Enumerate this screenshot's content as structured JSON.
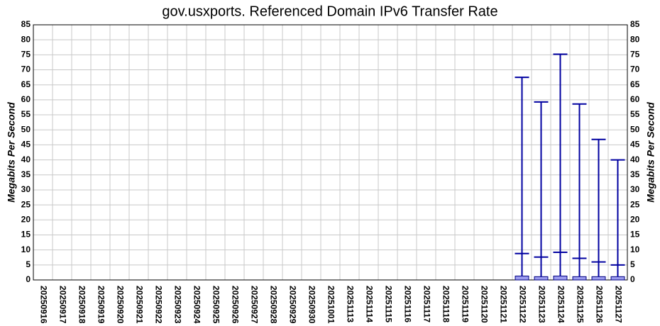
{
  "chart_data": {
    "type": "bar",
    "title": "gov.usxports. Referenced Domain IPv6 Transfer Rate",
    "ylabel": "Megabits Per Second",
    "y2label": "Megabits Per Second",
    "categories": [
      "20250916",
      "20250917",
      "20250918",
      "20250919",
      "20250920",
      "20250921",
      "20250922",
      "20250923",
      "20250924",
      "20250925",
      "20250926",
      "20250927",
      "20250928",
      "20250929",
      "20250930",
      "20251001",
      "20251113",
      "20251114",
      "20251115",
      "20251116",
      "20251117",
      "20251118",
      "20251119",
      "20251120",
      "20251121",
      "20251122",
      "20251123",
      "20251124",
      "20251125",
      "20251126",
      "20251127"
    ],
    "values": [
      0,
      0,
      0,
      0,
      0,
      0,
      0,
      0,
      0,
      0,
      0,
      0,
      0,
      0,
      0,
      0,
      0,
      0,
      0,
      0,
      0,
      0,
      0,
      0,
      0,
      1.3,
      1.1,
      1.3,
      1.1,
      1.1,
      1.1
    ],
    "avg_values": [
      null,
      null,
      null,
      null,
      null,
      null,
      null,
      null,
      null,
      null,
      null,
      null,
      null,
      null,
      null,
      null,
      null,
      null,
      null,
      null,
      null,
      null,
      null,
      null,
      null,
      8.8,
      7.6,
      9.2,
      7.2,
      6.0,
      5.0
    ],
    "max_values": [
      null,
      null,
      null,
      null,
      null,
      null,
      null,
      null,
      null,
      null,
      null,
      null,
      null,
      null,
      null,
      null,
      null,
      null,
      null,
      null,
      null,
      null,
      null,
      null,
      null,
      67.5,
      59.3,
      75.2,
      58.6,
      46.8,
      40.0
    ],
    "color": "#9a9aee",
    "error_color": "#0000a0",
    "ylim": [
      0,
      85
    ],
    "yticks": [
      0,
      5,
      10,
      15,
      20,
      25,
      30,
      35,
      40,
      45,
      50,
      55,
      60,
      65,
      70,
      75,
      80,
      85
    ],
    "y2lim": [
      0,
      85
    ],
    "y2ticks": [
      0,
      5,
      10,
      15,
      20,
      25,
      30,
      35,
      40,
      45,
      50,
      55,
      60,
      65,
      70,
      75,
      80,
      85
    ],
    "grid": true
  }
}
